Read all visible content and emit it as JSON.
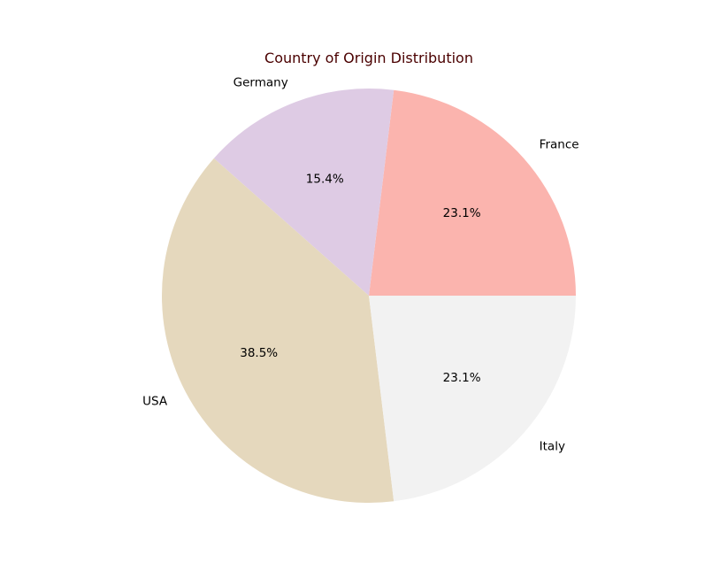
{
  "chart_data": {
    "type": "pie",
    "title": "Country of Origin Distribution",
    "title_color": "#4a0000",
    "categories": [
      "France",
      "Germany",
      "USA",
      "Italy"
    ],
    "values": [
      23.1,
      15.4,
      38.5,
      23.1
    ],
    "percent_labels": [
      "23.1%",
      "15.4%",
      "38.5%",
      "23.1%"
    ],
    "colors": [
      "#fbb4ae",
      "#decbe4",
      "#e5d8bd",
      "#f2f2f2"
    ],
    "start_angle_deg": 0,
    "direction": "counterclockwise"
  }
}
